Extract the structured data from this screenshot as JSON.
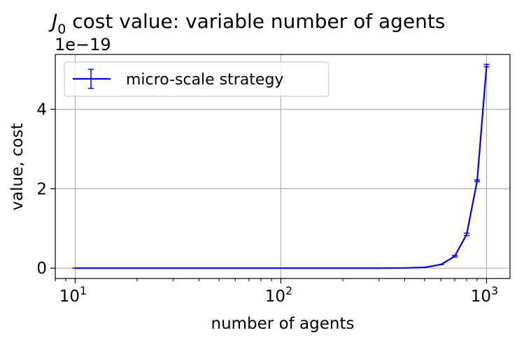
{
  "chart_data": {
    "type": "line",
    "title_symbol": "J",
    "title_subscript": "0",
    "title_rest": " cost value: variable number of agents",
    "xlabel": "number of agents",
    "ylabel": "value, cost",
    "x_scale": "log",
    "xlim": [
      8,
      1300
    ],
    "ylim": [
      -0.26,
      5.38
    ],
    "y_offset_text": "1e−19",
    "y_multiplier": "1e-19",
    "x_ticks": [
      {
        "value": 10,
        "base": "10",
        "exp": "1"
      },
      {
        "value": 100,
        "base": "10",
        "exp": "2"
      },
      {
        "value": 1000,
        "base": "10",
        "exp": "3"
      }
    ],
    "y_ticks": [
      {
        "value": 0,
        "label": "0"
      },
      {
        "value": 2,
        "label": "2"
      },
      {
        "value": 4,
        "label": "4"
      }
    ],
    "grid": true,
    "legend_position": "upper-left",
    "series": [
      {
        "name": "micro-scale strategy",
        "color": "#0000ff",
        "x": [
          10,
          20,
          50,
          100,
          200,
          300,
          400,
          500,
          600,
          700,
          800,
          900,
          1000
        ],
        "y": [
          0.0,
          0.0,
          0.0,
          0.0,
          0.0,
          0.0,
          0.005,
          0.02,
          0.09,
          0.3,
          0.85,
          2.2,
          5.1
        ],
        "yerr": [
          0.0,
          0.0,
          0.0,
          0.0,
          0.0,
          0.0,
          0.0,
          0.0,
          0.0,
          0.02,
          0.03,
          0.02,
          0.03
        ],
        "legend_yerr": 0.24
      }
    ]
  }
}
